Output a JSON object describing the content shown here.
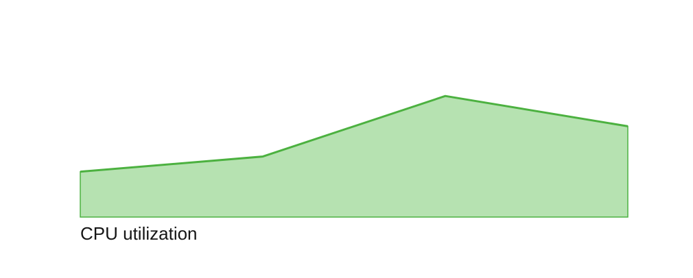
{
  "chart_data": {
    "type": "area",
    "caption": "CPU utilization",
    "x": [
      1,
      2,
      3,
      4
    ],
    "values": [
      3,
      4,
      8,
      6
    ],
    "ylim": [
      0,
      10
    ],
    "grid": false,
    "legend": "none",
    "fill_color": "#b6e2b1",
    "line_color": "#4cb140"
  }
}
